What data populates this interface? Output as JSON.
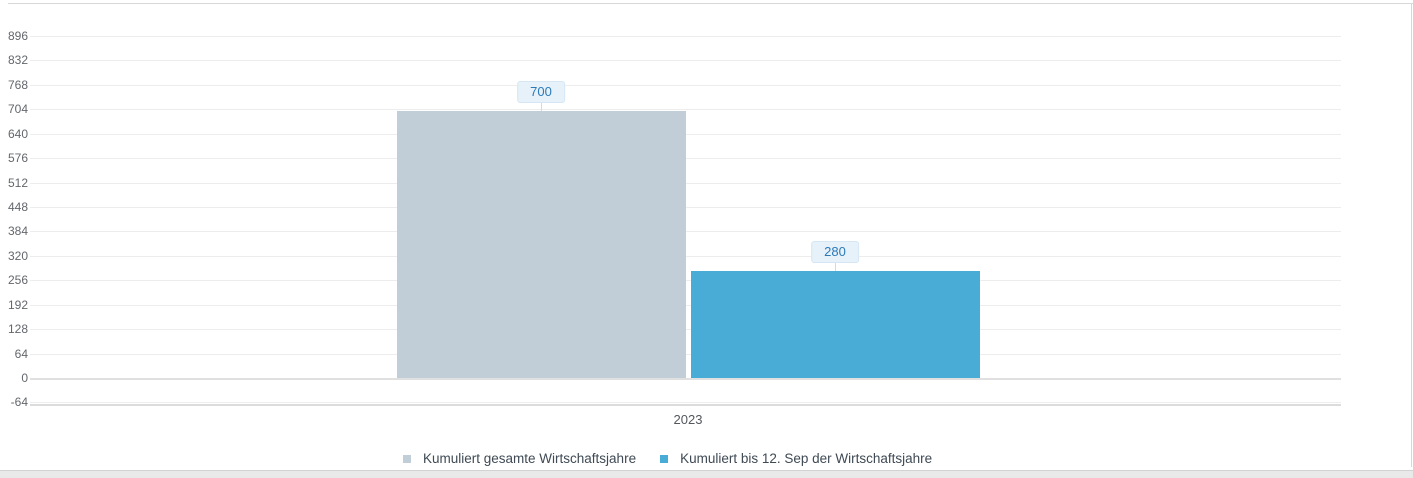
{
  "chart_data": {
    "type": "bar",
    "title": "",
    "categories": [
      "2023"
    ],
    "series": [
      {
        "name": "Kumuliert gesamte Wirtschaftsjahre",
        "values": [
          700
        ],
        "color": "#c2ced7",
        "label_text": "700"
      },
      {
        "name": "Kumuliert bis 12. Sep der Wirtschaftsjahre",
        "values": [
          280
        ],
        "color": "#49acd6",
        "label_text": "280"
      }
    ],
    "xlabel": "",
    "ylabel": "",
    "ylim": [
      -64,
      896
    ],
    "yticks": [
      896,
      832,
      768,
      704,
      640,
      576,
      512,
      448,
      384,
      320,
      256,
      192,
      128,
      64,
      0,
      -64
    ],
    "grid": true,
    "legend_position": "bottom",
    "data_labels_visible": true
  },
  "colors": {
    "grid_line": "#ededed",
    "zero_line": "#e0e0e0",
    "axis_line": "#dcdcdc",
    "tick_text": "#63676c",
    "category_text": "#54585e",
    "legend_text": "#3f4a54",
    "badge_bg": "#e7f1f9",
    "badge_border": "#d5e7f4",
    "badge_text": "#2b7ab8",
    "panel_border": "#d8d8d8",
    "scrollbar_track": "#e9e9e9"
  }
}
